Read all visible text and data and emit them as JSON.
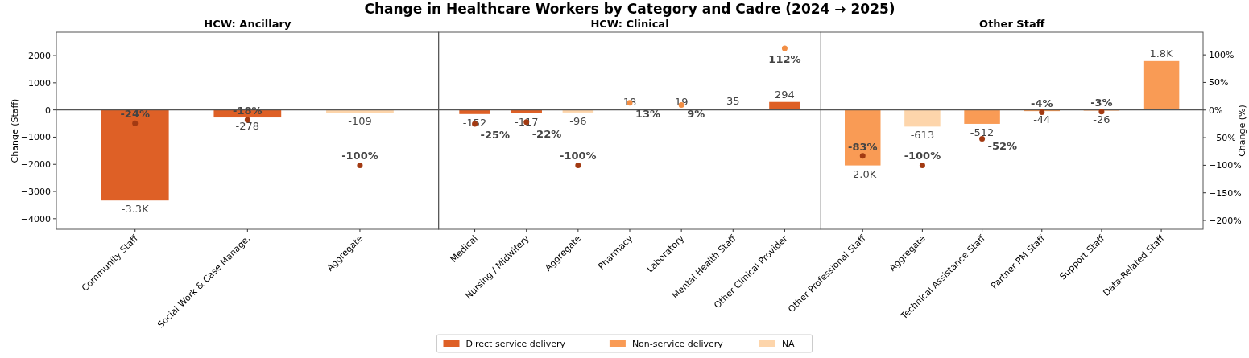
{
  "chart_data": [
    {
      "type": "bar",
      "subtitle": "HCW: Ancillary",
      "ylabel": "Change (Staff)",
      "categories": [
        "Community Staff",
        "Social Work & Case Manage.",
        "Aggregate"
      ],
      "ylim": [
        -4390,
        2860
      ],
      "yticks": [
        {
          "value": -4000,
          "label": "−4000"
        },
        {
          "value": -3000,
          "label": "−3000"
        },
        {
          "value": -2000,
          "label": "−2000"
        },
        {
          "value": -1000,
          "label": "−1000"
        },
        0,
        1000,
        2000
      ],
      "y2lim": [
        -216,
        141
      ],
      "tick_labels": "xy",
      "series": [
        {
          "color": "#de6026",
          "values": [
            -3330,
            -278,
            null
          ],
          "value_labels": [
            "-3.3K",
            "-278",
            null
          ]
        },
        {
          "color": "#fdd5ab",
          "values": [
            null,
            null,
            -109
          ],
          "value_labels": [
            null,
            null,
            "-109"
          ]
        },
        {
          "type": "scatter",
          "axis": "y2",
          "marker": "circle",
          "values": [
            -24,
            -18,
            -100
          ],
          "colors": [
            "#a23a12",
            "#a23a12",
            "#a23a12"
          ],
          "value_labels": [
            "-24%",
            "-18%",
            "-100%"
          ]
        }
      ]
    },
    {
      "type": "bar",
      "title": "Change in Healthcare Workers by Category and Cadre (2024 → 2025)",
      "subtitle": "HCW: Clinical",
      "categories": [
        "Medical",
        "Nursing / Midwifery",
        "Aggregate",
        "Pharmacy",
        "Laboratory",
        "Mental Health Staff",
        "Other Clinical Provider"
      ],
      "ylim": [
        -4390,
        2860
      ],
      "y2lim": [
        -216,
        141
      ],
      "tick_labels": "x",
      "legend": "bottom",
      "series": [
        {
          "name": "Direct service delivery",
          "color": "#de6026",
          "values": [
            -152,
            -117,
            null,
            18,
            19,
            35,
            294
          ],
          "value_labels": [
            "-152",
            "-117",
            null,
            "18",
            "19",
            "35",
            "294"
          ]
        },
        {
          "name": "Non-service delivery",
          "color": "#f99b55",
          "values": [
            null,
            null,
            null,
            null,
            null,
            null,
            null
          ]
        },
        {
          "name": "NA",
          "color": "#fdd5ab",
          "values": [
            null,
            null,
            -96,
            null,
            null,
            null,
            null
          ],
          "value_labels": [
            null,
            null,
            "-96",
            null,
            null,
            null,
            null
          ]
        },
        {
          "type": "scatter",
          "axis": "y2",
          "marker": "circle",
          "values": [
            -25,
            -22,
            -100,
            13,
            9,
            null,
            112
          ],
          "colors": [
            "#a23a12",
            "#a23a12",
            "#a23a12",
            "#f28e44",
            "#f28e44",
            null,
            "#f28e44"
          ],
          "value_labels": [
            "-25%",
            "-22%",
            "-100%",
            "13%",
            "9%",
            null,
            "112%"
          ]
        }
      ]
    },
    {
      "type": "bar",
      "subtitle": "Other Staff",
      "y2label": "Change (%)",
      "categories": [
        "Other Professional Staff",
        "Aggregate",
        "Technical Assistance Staff",
        "Partner PM Staff",
        "Support Staff",
        "Data-Related Staff"
      ],
      "ylim": [
        -4390,
        2860
      ],
      "y2lim": [
        -216,
        141
      ],
      "y2ticks": [
        {
          "value": -200,
          "label": "−200%"
        },
        {
          "value": -150,
          "label": "−150%"
        },
        {
          "value": -100,
          "label": "−100%"
        },
        {
          "value": -50,
          "label": "−50%"
        },
        {
          "value": 0,
          "label": "0%"
        },
        {
          "value": 50,
          "label": "50%"
        },
        {
          "value": 100,
          "label": "100%"
        }
      ],
      "tick_labels": "xy2",
      "series": [
        {
          "color": "#f99b55",
          "values": [
            -2040,
            null,
            -512,
            -44,
            -26,
            1800
          ],
          "value_labels": [
            "-2.0K",
            null,
            "-512",
            "-44",
            "-26",
            "1.8K"
          ]
        },
        {
          "color": "#fdd5ab",
          "values": [
            null,
            -613,
            null,
            null,
            null,
            null
          ],
          "value_labels": [
            null,
            "-613",
            null,
            null,
            null,
            null
          ]
        },
        {
          "type": "scatter",
          "axis": "y2",
          "marker": "circle",
          "values": [
            -83,
            -100,
            -52,
            -4,
            -3,
            null
          ],
          "colors": [
            "#a23a12",
            "#a23a12",
            "#a23a12",
            "#a23a12",
            "#a23a12",
            null
          ],
          "value_labels": [
            "-83%",
            "-100%",
            "-52%",
            "-4%",
            "-3%",
            null
          ]
        }
      ]
    }
  ]
}
